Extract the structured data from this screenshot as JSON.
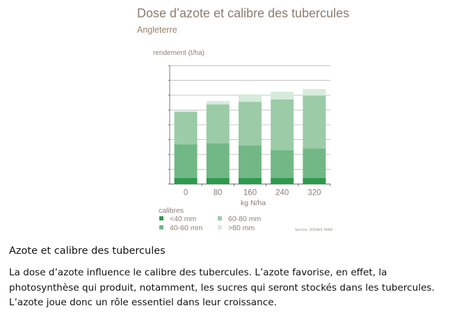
{
  "chart_data": {
    "type": "bar",
    "stacked": true,
    "title": "Dose d’azote et calibre des tubercules",
    "subtitle": "Angleterre",
    "ylabel": "rendement (t/ha)",
    "xlabel": "kg N/ha",
    "categories": [
      "0",
      "80",
      "160",
      "240",
      "320"
    ],
    "ylim": [
      0,
      8
    ],
    "y_tick_labels_shown": false,
    "grid": true,
    "legend_title": "calibres",
    "legend_position": "bottom-left",
    "series": [
      {
        "name": "<40 mm",
        "color": "#2e9a4e",
        "values": [
          0.42,
          0.42,
          0.42,
          0.42,
          0.42
        ]
      },
      {
        "name": "40-60 mm",
        "color": "#72b886",
        "values": [
          2.27,
          2.33,
          2.19,
          1.88,
          1.99
        ]
      },
      {
        "name": "60-80 mm",
        "color": "#9ccba8",
        "values": [
          2.19,
          2.63,
          2.95,
          3.42,
          3.57
        ]
      },
      {
        "name": ">80 mm",
        "color": "#d6ebdb",
        "values": [
          0.06,
          0.23,
          0.5,
          0.51,
          0.43
        ]
      }
    ],
    "source": "Source : ESSAIS YARA"
  },
  "article": {
    "heading": "Azote et calibre des tubercules",
    "paragraph": "La dose d’azote influence le calibre des tubercules. L’azote favorise, en effet, la photosynthèse qui produit, notamment, les sucres qui seront stockés dans les tubercules. L’azote joue donc un rôle essentiel dans leur croissance."
  }
}
